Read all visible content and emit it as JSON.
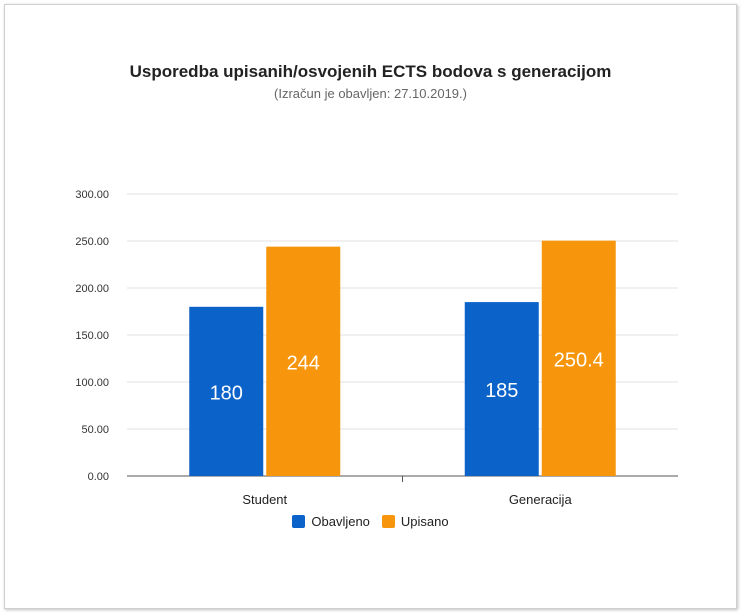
{
  "chart_data": {
    "type": "bar",
    "title": "Usporedba upisanih/osvojenih ECTS bodova s generacijom",
    "subtitle": "(Izračun je obavljen: 27.10.2019.)",
    "categories": [
      "Student",
      "Generacija"
    ],
    "series": [
      {
        "name": "Obavljeno",
        "color": "#0b62c9",
        "values": [
          180,
          185
        ],
        "labels": [
          "180",
          "185"
        ]
      },
      {
        "name": "Upisano",
        "color": "#f7960d",
        "values": [
          244,
          250.4
        ],
        "labels": [
          "244",
          "250.4"
        ]
      }
    ],
    "yticks": [
      "0.00",
      "50.00",
      "100.00",
      "150.00",
      "200.00",
      "250.00",
      "300.00"
    ],
    "ylim": [
      0,
      300
    ],
    "grid": true,
    "legend": "bottom"
  }
}
